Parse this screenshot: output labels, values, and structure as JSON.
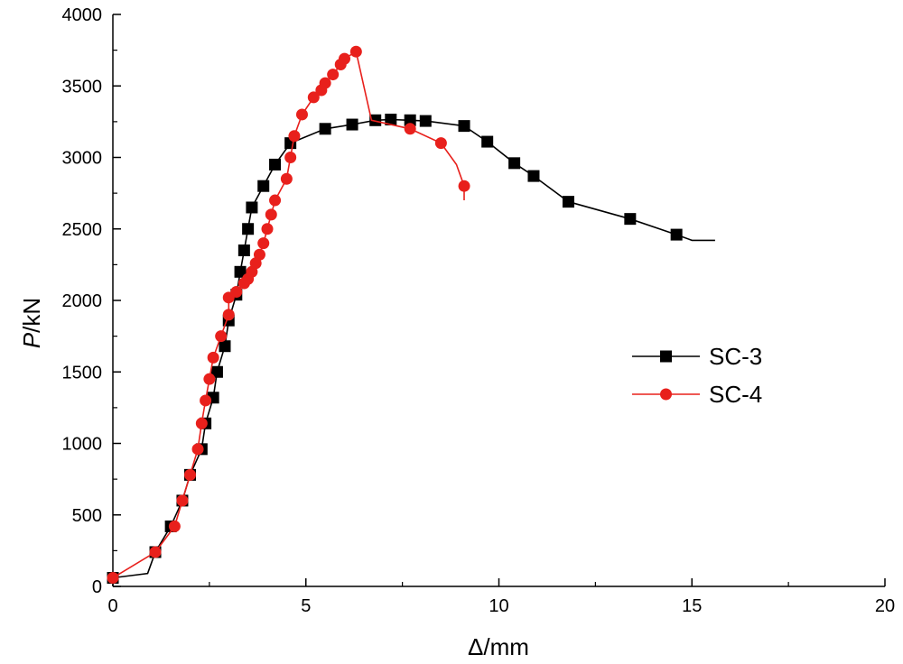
{
  "chart_data": {
    "type": "line",
    "title": "",
    "xlabel": "Δ/mm",
    "ylabel_italic": "P",
    "ylabel_unit": "/kN",
    "xlim": [
      0,
      20
    ],
    "ylim": [
      0,
      4000
    ],
    "xticks": [
      0,
      5,
      10,
      15,
      20
    ],
    "yticks": [
      0,
      500,
      1000,
      1500,
      2000,
      2500,
      3000,
      3500,
      4000
    ],
    "xtick_labels": [
      "0",
      "5",
      "10",
      "15",
      "20"
    ],
    "ytick_labels": [
      "0",
      "500",
      "1000",
      "1500",
      "2000",
      "2500",
      "3000",
      "3500",
      "4000"
    ],
    "grid": false,
    "legend_position": "right",
    "series": [
      {
        "name": "SC-3",
        "color": "#000000",
        "marker": "square",
        "line": [
          [
            0,
            60
          ],
          [
            0.9,
            90
          ],
          [
            1.1,
            240
          ],
          [
            1.5,
            420
          ],
          [
            1.8,
            600
          ],
          [
            2.0,
            780
          ],
          [
            2.3,
            960
          ],
          [
            2.4,
            1140
          ],
          [
            2.6,
            1320
          ],
          [
            2.7,
            1500
          ],
          [
            2.9,
            1680
          ],
          [
            3.0,
            1860
          ],
          [
            3.2,
            2040
          ],
          [
            3.3,
            2200
          ],
          [
            3.4,
            2350
          ],
          [
            3.5,
            2500
          ],
          [
            3.6,
            2650
          ],
          [
            3.9,
            2800
          ],
          [
            4.2,
            2950
          ],
          [
            4.6,
            3100
          ],
          [
            5.5,
            3200
          ],
          [
            6.2,
            3230
          ],
          [
            6.8,
            3260
          ],
          [
            7.2,
            3265
          ],
          [
            7.7,
            3260
          ],
          [
            8.1,
            3255
          ],
          [
            9.1,
            3220
          ],
          [
            9.7,
            3110
          ],
          [
            10.4,
            2960
          ],
          [
            10.9,
            2870
          ],
          [
            11.8,
            2690
          ],
          [
            13.4,
            2570
          ],
          [
            14.6,
            2460
          ],
          [
            15.0,
            2420
          ],
          [
            15.6,
            2420
          ]
        ],
        "markers": [
          [
            0,
            60
          ],
          [
            1.1,
            240
          ],
          [
            1.5,
            420
          ],
          [
            1.8,
            600
          ],
          [
            2.0,
            780
          ],
          [
            2.3,
            960
          ],
          [
            2.4,
            1140
          ],
          [
            2.6,
            1320
          ],
          [
            2.7,
            1500
          ],
          [
            2.9,
            1680
          ],
          [
            3.0,
            1860
          ],
          [
            3.2,
            2040
          ],
          [
            3.3,
            2200
          ],
          [
            3.4,
            2350
          ],
          [
            3.5,
            2500
          ],
          [
            3.6,
            2650
          ],
          [
            3.9,
            2800
          ],
          [
            4.2,
            2950
          ],
          [
            4.6,
            3100
          ],
          [
            5.5,
            3200
          ],
          [
            6.2,
            3230
          ],
          [
            6.8,
            3260
          ],
          [
            7.2,
            3265
          ],
          [
            7.7,
            3260
          ],
          [
            8.1,
            3255
          ],
          [
            9.1,
            3220
          ],
          [
            9.7,
            3110
          ],
          [
            10.4,
            2960
          ],
          [
            10.9,
            2870
          ],
          [
            11.8,
            2690
          ],
          [
            13.4,
            2570
          ],
          [
            14.6,
            2460
          ]
        ]
      },
      {
        "name": "SC-4",
        "color": "#e8201c",
        "marker": "circle",
        "line": [
          [
            0,
            60
          ],
          [
            1.1,
            240
          ],
          [
            1.6,
            420
          ],
          [
            1.8,
            600
          ],
          [
            2.0,
            780
          ],
          [
            2.2,
            960
          ],
          [
            2.3,
            1140
          ],
          [
            2.4,
            1300
          ],
          [
            2.5,
            1450
          ],
          [
            2.6,
            1600
          ],
          [
            2.8,
            1750
          ],
          [
            3.0,
            1900
          ],
          [
            3.0,
            2020
          ],
          [
            3.2,
            2060
          ],
          [
            3.4,
            2120
          ],
          [
            3.5,
            2150
          ],
          [
            3.6,
            2200
          ],
          [
            3.7,
            2260
          ],
          [
            3.8,
            2320
          ],
          [
            3.9,
            2400
          ],
          [
            4.0,
            2500
          ],
          [
            4.1,
            2600
          ],
          [
            4.2,
            2700
          ],
          [
            4.5,
            2850
          ],
          [
            4.6,
            3000
          ],
          [
            4.7,
            3150
          ],
          [
            4.9,
            3300
          ],
          [
            5.2,
            3420
          ],
          [
            5.4,
            3470
          ],
          [
            5.5,
            3520
          ],
          [
            5.7,
            3580
          ],
          [
            5.9,
            3650
          ],
          [
            6.0,
            3690
          ],
          [
            6.3,
            3740
          ],
          [
            6.7,
            3260
          ],
          [
            7.7,
            3200
          ],
          [
            8.5,
            3100
          ],
          [
            8.9,
            2950
          ],
          [
            9.1,
            2800
          ],
          [
            9.1,
            2700
          ]
        ],
        "markers": [
          [
            0,
            60
          ],
          [
            1.1,
            240
          ],
          [
            1.6,
            420
          ],
          [
            1.8,
            600
          ],
          [
            2.0,
            780
          ],
          [
            2.2,
            960
          ],
          [
            2.3,
            1140
          ],
          [
            2.4,
            1300
          ],
          [
            2.5,
            1450
          ],
          [
            2.6,
            1600
          ],
          [
            2.8,
            1750
          ],
          [
            3.0,
            1900
          ],
          [
            3.0,
            2020
          ],
          [
            3.2,
            2060
          ],
          [
            3.4,
            2120
          ],
          [
            3.5,
            2150
          ],
          [
            3.6,
            2200
          ],
          [
            3.7,
            2260
          ],
          [
            3.8,
            2320
          ],
          [
            3.9,
            2400
          ],
          [
            4.0,
            2500
          ],
          [
            4.1,
            2600
          ],
          [
            4.2,
            2700
          ],
          [
            4.5,
            2850
          ],
          [
            4.6,
            3000
          ],
          [
            4.7,
            3150
          ],
          [
            4.9,
            3300
          ],
          [
            5.2,
            3420
          ],
          [
            5.4,
            3470
          ],
          [
            5.5,
            3520
          ],
          [
            5.7,
            3580
          ],
          [
            5.9,
            3650
          ],
          [
            6.0,
            3690
          ],
          [
            6.3,
            3740
          ],
          [
            7.7,
            3200
          ],
          [
            8.5,
            3100
          ],
          [
            9.1,
            2800
          ]
        ]
      }
    ]
  }
}
